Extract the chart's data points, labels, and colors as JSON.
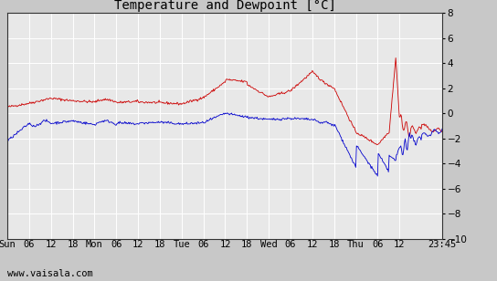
{
  "title": "Temperature and Dewpoint [°C]",
  "ylim": [
    -10,
    8
  ],
  "x_labels": [
    "Sun",
    "06",
    "12",
    "18",
    "Mon",
    "06",
    "12",
    "18",
    "Tue",
    "06",
    "12",
    "18",
    "Wed",
    "06",
    "12",
    "18",
    "Thu",
    "06",
    "12",
    "23:45"
  ],
  "temp_color": "#cc0000",
  "dew_color": "#0000cc",
  "bg_color": "#c8c8c8",
  "plot_bg": "#e8e8e8",
  "grid_color": "#ffffff",
  "watermark": "www.vaisala.com",
  "title_fontsize": 10,
  "tick_fontsize": 7.5,
  "watermark_fontsize": 7.5,
  "border_color": "#000000",
  "right_panel_color": "#c8c8c8"
}
